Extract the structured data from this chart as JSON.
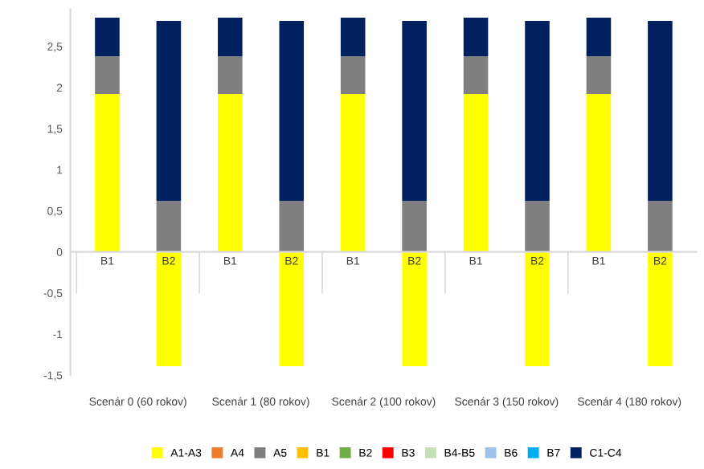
{
  "chart_data": {
    "type": "bar",
    "stacked": true,
    "categories": [
      "B1",
      "B2",
      "B1",
      "B2",
      "B1",
      "B2",
      "B1",
      "B2",
      "B1",
      "B2"
    ],
    "series": [
      {
        "name": "A1-A3",
        "color": "#ffff00",
        "values": [
          1.92,
          -1.39,
          1.92,
          -1.39,
          1.92,
          -1.39,
          1.92,
          -1.39,
          1.92,
          -1.39
        ]
      },
      {
        "name": "A4",
        "color": "#ed7d31",
        "values": [
          0,
          0,
          0,
          0,
          0,
          0,
          0,
          0,
          0,
          0
        ]
      },
      {
        "name": "A5",
        "color": "#7f7f7f",
        "values": [
          0.46,
          0.62,
          0.46,
          0.62,
          0.46,
          0.62,
          0.46,
          0.62,
          0.46,
          0.62
        ]
      },
      {
        "name": "B1",
        "color": "#ffc000",
        "values": [
          0,
          0,
          0,
          0,
          0,
          0,
          0,
          0,
          0,
          0
        ]
      },
      {
        "name": "B2",
        "color": "#70ad47",
        "values": [
          0,
          0,
          0,
          0,
          0,
          0,
          0,
          0,
          0,
          0
        ]
      },
      {
        "name": "B3",
        "color": "#ff0000",
        "values": [
          0,
          0,
          0,
          0,
          0,
          0,
          0,
          0,
          0,
          0
        ]
      },
      {
        "name": "B4-B5",
        "color": "#c5e0b4",
        "values": [
          0,
          0,
          0,
          0,
          0,
          0,
          0,
          0,
          0,
          0
        ]
      },
      {
        "name": "B6",
        "color": "#9dc3e6",
        "values": [
          0,
          0,
          0,
          0,
          0,
          0,
          0,
          0,
          0,
          0
        ]
      },
      {
        "name": "B7",
        "color": "#00b0f0",
        "values": [
          0,
          0,
          0,
          0,
          0,
          0,
          0,
          0,
          0,
          0
        ]
      },
      {
        "name": "C1-C4",
        "color": "#002060",
        "values": [
          0.47,
          2.19,
          0.47,
          2.19,
          0.47,
          2.19,
          0.47,
          2.19,
          0.47,
          2.19
        ]
      }
    ],
    "ylim": [
      -1.5,
      2.95
    ],
    "yticks": [
      {
        "value": -1.5,
        "label": "-1,5"
      },
      {
        "value": -1,
        "label": "-1"
      },
      {
        "value": -0.5,
        "label": "-0,5"
      },
      0,
      {
        "value": 0.5,
        "label": "0,5"
      },
      1,
      {
        "value": 1.5,
        "label": "1,5"
      },
      2,
      {
        "value": 2.5,
        "label": "2,5"
      }
    ],
    "annotations": [
      "Scenár 0 (60 rokov)",
      "Scenár 1 (80 rokov)",
      "Scenár 2 (100 rokov)",
      "Scenár 3 (150 rokov)",
      "Scenár 4 (180 rokov)"
    ],
    "grid": false,
    "legend": "bottom"
  }
}
